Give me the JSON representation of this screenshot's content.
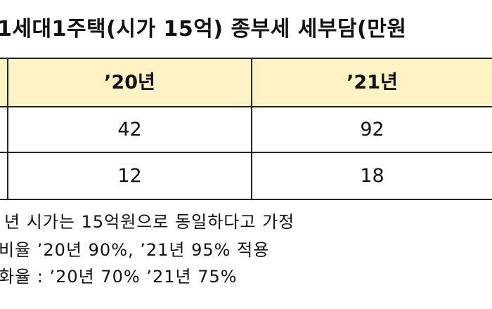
{
  "title": "1세대1주택(시가 15억) 종부세 세부담(만원",
  "table": {
    "headers": [
      "’20년",
      "’21년"
    ],
    "rows": [
      [
        "42",
        "92"
      ],
      [
        "12",
        "18"
      ]
    ]
  },
  "notes": [
    "년 시가는 15억원으로 동일하다고 가정",
    "비율 ’20년 90%, ’21년 95% 적용",
    "화율 : ’20년 70% ’21년 75%"
  ]
}
